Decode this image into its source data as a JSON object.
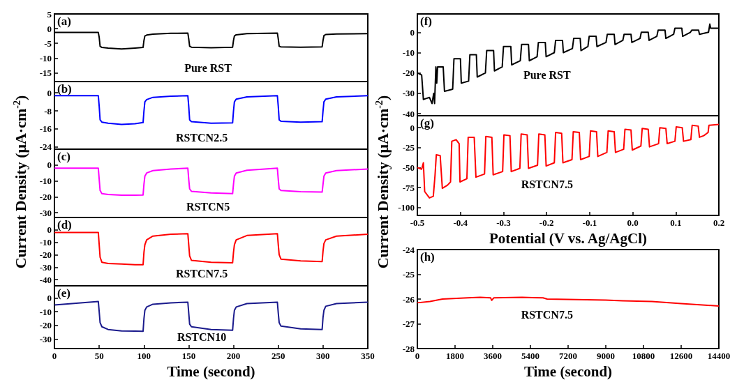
{
  "chart_data": [
    {
      "type": "line",
      "annotations": [
        "(a)",
        "Pure RST"
      ],
      "xlim": [
        0,
        350
      ],
      "ylim": [
        -18,
        5
      ],
      "yticks": [
        -15,
        -10,
        -5,
        0,
        5
      ],
      "tick_labels": "y",
      "x": [
        0,
        49,
        50,
        51,
        53,
        60,
        75,
        90,
        99,
        100,
        101,
        103,
        110,
        130,
        149,
        150,
        151,
        153,
        175,
        199,
        200,
        201,
        203,
        215,
        249,
        250,
        251,
        253,
        275,
        299,
        300,
        301,
        303,
        315,
        350
      ],
      "series": [
        {
          "color": "#000000",
          "values": [
            -1.3,
            -1.3,
            -3,
            -6,
            -6.4,
            -6.6,
            -6.9,
            -6.6,
            -6.4,
            -4,
            -2.5,
            -2.2,
            -1.9,
            -1.6,
            -1.5,
            -3.5,
            -6,
            -6.3,
            -6.5,
            -6.3,
            -4,
            -2.5,
            -2.1,
            -1.7,
            -1.5,
            -3.5,
            -6,
            -6.2,
            -6.3,
            -6.2,
            -4,
            -2.4,
            -2,
            -1.8,
            -1.7
          ]
        }
      ]
    },
    {
      "type": "line",
      "annotations": [
        "(b)",
        "RSTCN2.5"
      ],
      "xlim": [
        0,
        350
      ],
      "ylim": [
        -25,
        5
      ],
      "yticks": [
        -24,
        -16,
        -8,
        0
      ],
      "tick_labels": "y",
      "x": [
        0,
        49,
        50,
        51,
        53,
        60,
        75,
        90,
        99,
        100,
        101,
        103,
        110,
        130,
        149,
        150,
        151,
        153,
        175,
        199,
        200,
        201,
        203,
        215,
        249,
        250,
        251,
        253,
        275,
        299,
        300,
        301,
        303,
        315,
        350
      ],
      "series": [
        {
          "color": "#0000ff",
          "values": [
            -1.3,
            -1.3,
            -6,
            -12,
            -13,
            -13.5,
            -14,
            -13.7,
            -13.2,
            -8,
            -4,
            -3,
            -2,
            -1.5,
            -1.3,
            -6,
            -12,
            -12.8,
            -13.5,
            -13.3,
            -8,
            -4,
            -2.8,
            -1.8,
            -1.3,
            -6,
            -12,
            -12.6,
            -13,
            -12.8,
            -8,
            -4,
            -2.8,
            -1.8,
            -1.3
          ]
        }
      ]
    },
    {
      "type": "line",
      "annotations": [
        "(c)",
        "RSTCN5"
      ],
      "ylabel": "Current Density (μA·cm$^{-2}$)",
      "xlim": [
        0,
        350
      ],
      "ylim": [
        -33,
        10
      ],
      "yticks": [
        -30,
        -20,
        -10,
        0
      ],
      "tick_labels": "y",
      "x": [
        0,
        49,
        50,
        51,
        53,
        60,
        75,
        90,
        99,
        100,
        101,
        103,
        110,
        130,
        149,
        150,
        151,
        153,
        175,
        199,
        200,
        201,
        203,
        215,
        249,
        250,
        251,
        253,
        275,
        299,
        300,
        301,
        303,
        315,
        350
      ],
      "series": [
        {
          "color": "#ff00ff",
          "values": [
            -2,
            -2,
            -9,
            -16,
            -18,
            -18.5,
            -19,
            -19,
            -18.8,
            -12,
            -7,
            -5,
            -3.5,
            -2.5,
            -2,
            -9,
            -15,
            -16.5,
            -17.5,
            -18,
            -12,
            -7,
            -5,
            -3.3,
            -2,
            -9,
            -15,
            -16,
            -16.8,
            -17,
            -12,
            -7,
            -5,
            -3.5,
            -2.5
          ]
        }
      ]
    },
    {
      "type": "line",
      "annotations": [
        "(d)",
        "RSTCN7.5"
      ],
      "xlim": [
        0,
        350
      ],
      "ylim": [
        -45,
        10
      ],
      "yticks": [
        -40,
        -30,
        -20,
        -10,
        0
      ],
      "tick_labels": "y",
      "x": [
        0,
        49,
        50,
        51,
        53,
        60,
        75,
        90,
        99,
        100,
        101,
        103,
        110,
        130,
        149,
        150,
        151,
        153,
        175,
        199,
        200,
        201,
        203,
        215,
        249,
        250,
        251,
        253,
        275,
        299,
        300,
        301,
        303,
        315,
        350
      ],
      "series": [
        {
          "color": "#ff0000",
          "values": [
            -2,
            -2,
            -12,
            -22,
            -26,
            -27,
            -27.5,
            -28,
            -28,
            -18,
            -12,
            -8,
            -5,
            -3.5,
            -3,
            -12,
            -21,
            -24.5,
            -26,
            -26.5,
            -18,
            -12,
            -8,
            -4.5,
            -3,
            -12,
            -20,
            -23.5,
            -25,
            -25.5,
            -17,
            -11,
            -8,
            -5,
            -3.5
          ]
        }
      ]
    },
    {
      "type": "line",
      "annotations": [
        "(e)",
        "RSTCN10"
      ],
      "xlabel": "Time (second)",
      "xlim": [
        0,
        350
      ],
      "xticks": [
        0,
        50,
        100,
        150,
        200,
        250,
        300,
        350
      ],
      "ylim": [
        -37,
        9
      ],
      "yticks": [
        -30,
        -20,
        -10,
        0
      ],
      "x": [
        0,
        49,
        50,
        51,
        53,
        60,
        75,
        90,
        99,
        100,
        101,
        103,
        110,
        130,
        149,
        150,
        151,
        153,
        175,
        199,
        200,
        201,
        203,
        215,
        249,
        250,
        251,
        253,
        275,
        299,
        300,
        301,
        303,
        315,
        350
      ],
      "series": [
        {
          "color": "#1a1a8c",
          "values": [
            -5,
            -2.5,
            -10,
            -18,
            -21,
            -23,
            -24,
            -24.2,
            -24.3,
            -15,
            -9,
            -6.5,
            -4.5,
            -3.5,
            -3,
            -11,
            -19,
            -21,
            -23,
            -23.5,
            -15,
            -9,
            -6.5,
            -4,
            -3,
            -11,
            -18,
            -20.5,
            -22.5,
            -23,
            -14,
            -9,
            -6,
            -4,
            -3
          ]
        }
      ]
    },
    {
      "type": "line",
      "annotations": [
        "(f)",
        "Pure RST"
      ],
      "xlim": [
        -0.5,
        0.2
      ],
      "ylim": [
        -41,
        9
      ],
      "yticks": [
        -40,
        -30,
        -20,
        -10,
        0
      ],
      "tick_labels": "y",
      "x": [
        -0.5,
        -0.49,
        -0.486,
        -0.472,
        -0.466,
        -0.462,
        -0.46,
        -0.457,
        -0.455,
        -0.453,
        -0.44,
        -0.437,
        -0.418,
        -0.415,
        -0.4,
        -0.398,
        -0.381,
        -0.378,
        -0.363,
        -0.361,
        -0.342,
        -0.339,
        -0.323,
        -0.321,
        -0.303,
        -0.3,
        -0.283,
        -0.281,
        -0.261,
        -0.258,
        -0.242,
        -0.24,
        -0.222,
        -0.219,
        -0.203,
        -0.201,
        -0.182,
        -0.179,
        -0.163,
        -0.161,
        -0.14,
        -0.137,
        -0.122,
        -0.12,
        -0.104,
        -0.101,
        -0.085,
        -0.083,
        -0.062,
        -0.059,
        -0.043,
        -0.041,
        -0.023,
        -0.02,
        -0.004,
        -0.002,
        0.017,
        0.02,
        0.036,
        0.038,
        0.056,
        0.059,
        0.075,
        0.077,
        0.095,
        0.098,
        0.114,
        0.116,
        0.134,
        0.137,
        0.153,
        0.155,
        0.176,
        0.179,
        0.181,
        0.2
      ],
      "series": [
        {
          "color": "#000000",
          "values": [
            -20,
            -21,
            -33,
            -32,
            -35,
            -30,
            -35,
            -17,
            -25,
            -17,
            -17,
            -29,
            -28,
            -13,
            -13,
            -25,
            -24,
            -11,
            -11,
            -22,
            -20,
            -9,
            -9,
            -19,
            -17,
            -7,
            -7,
            -16,
            -14,
            -6,
            -6,
            -14,
            -12,
            -5,
            -5,
            -12,
            -10,
            -4,
            -4,
            -10,
            -8,
            -3,
            -3,
            -9,
            -7,
            -2,
            -2,
            -7,
            -5,
            -1,
            -1,
            -6,
            -4,
            -1,
            -1,
            -5,
            -3,
            0,
            0,
            -4,
            -2,
            1,
            1,
            -3,
            -1,
            2,
            2,
            -2,
            0,
            1,
            1,
            -1,
            0,
            4,
            2,
            2
          ]
        }
      ]
    },
    {
      "type": "line",
      "annotations": [
        "(g)",
        "RSTCN7.5"
      ],
      "xlabel": "Potential (V vs. Ag/AgCl)",
      "ylabel": "Current Density (μA·cm$^{-2}$)",
      "xlim": [
        -0.5,
        0.2
      ],
      "xticks": [
        -0.5,
        -0.4,
        -0.3,
        -0.2,
        -0.1,
        {
          "value": 0,
          "label": "0.0"
        },
        0.1,
        0.2
      ],
      "ylim": [
        -110,
        15
      ],
      "yticks": [
        -100,
        -75,
        -50,
        -25,
        0
      ],
      "x": [
        -0.5,
        -0.49,
        -0.486,
        -0.483,
        -0.472,
        -0.463,
        -0.459,
        -0.456,
        -0.447,
        -0.442,
        -0.43,
        -0.423,
        -0.42,
        -0.41,
        -0.403,
        -0.401,
        -0.385,
        -0.382,
        -0.368,
        -0.364,
        -0.344,
        -0.341,
        -0.327,
        -0.324,
        -0.302,
        -0.299,
        -0.285,
        -0.282,
        -0.262,
        -0.259,
        -0.245,
        -0.242,
        -0.221,
        -0.218,
        -0.204,
        -0.201,
        -0.182,
        -0.179,
        -0.165,
        -0.162,
        -0.141,
        -0.138,
        -0.124,
        -0.121,
        -0.101,
        -0.098,
        -0.084,
        -0.081,
        -0.06,
        -0.057,
        -0.043,
        -0.04,
        -0.021,
        -0.018,
        -0.004,
        -0.001,
        0.019,
        0.022,
        0.036,
        0.039,
        0.06,
        0.063,
        0.077,
        0.08,
        0.098,
        0.101,
        0.115,
        0.118,
        0.135,
        0.138,
        0.152,
        0.155,
        0.165,
        0.175,
        0.177,
        0.2
      ],
      "series": [
        {
          "color": "#ff0000",
          "values": [
            -50,
            -52,
            -44,
            -80,
            -88,
            -86,
            -60,
            -34,
            -35,
            -76,
            -72,
            -68,
            -17,
            -15,
            -20,
            -68,
            -64,
            -12,
            -12,
            -62,
            -58,
            -11,
            -12,
            -59,
            -55,
            -9,
            -10,
            -55,
            -51,
            -8,
            -9,
            -51,
            -47,
            -8,
            -9,
            -48,
            -44,
            -6,
            -7,
            -44,
            -40,
            -5,
            -6,
            -40,
            -36,
            -4,
            -5,
            -36,
            -31,
            -4,
            -5,
            -31,
            -27,
            -2,
            -3,
            -28,
            -23,
            -1,
            -2,
            -24,
            -20,
            0,
            -1,
            -20,
            -17,
            1,
            0,
            -17,
            -15,
            3,
            2,
            -12,
            -10,
            -6,
            3,
            4
          ]
        }
      ]
    },
    {
      "type": "line",
      "annotations": [
        "(h)",
        "RSTCN7.5"
      ],
      "xlabel": "Time (second)",
      "xlim": [
        0,
        14400
      ],
      "xticks": [
        0,
        1800,
        3600,
        5400,
        7200,
        9000,
        10800,
        12600,
        14400
      ],
      "ylim": [
        -28,
        -24
      ],
      "yticks": [
        -28,
        -27,
        -26,
        -25,
        -24
      ],
      "x": [
        0,
        600,
        1200,
        2400,
        3000,
        3500,
        3550,
        3650,
        5000,
        6000,
        6200,
        9000,
        9800,
        11200,
        12600,
        14400
      ],
      "series": [
        {
          "color": "#ff0000",
          "values": [
            -26.15,
            -26.1,
            -26,
            -25.95,
            -25.93,
            -25.95,
            -26.05,
            -25.95,
            -25.93,
            -25.95,
            -26,
            -26.04,
            -26.07,
            -26.1,
            -26.18,
            -26.28
          ]
        }
      ]
    }
  ]
}
